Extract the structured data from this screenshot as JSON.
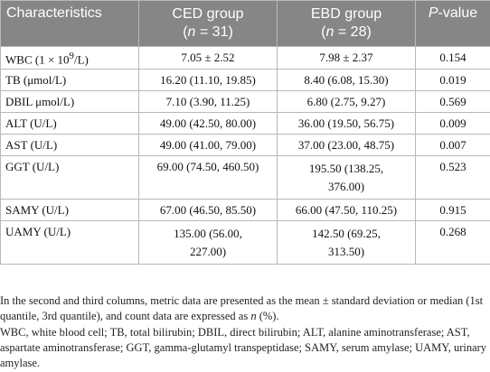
{
  "table": {
    "headers": {
      "characteristics": "Characteristics",
      "ced": {
        "line1": "CED group",
        "open": "(",
        "n": "n",
        "eq": " = 31)"
      },
      "ebd": {
        "line1": "EBD group",
        "open": "(",
        "n": "n",
        "eq": " = 28)"
      },
      "pvalue": {
        "p": "P",
        "rest": "-value"
      }
    },
    "rows": [
      {
        "label_a": "WBC (1 × 10",
        "label_sup": "9",
        "label_b": "/L)",
        "ced": "7.05 ± 2.52",
        "ebd": "7.98 ± 2.37",
        "p": "0.154"
      },
      {
        "label": "TB (μmol/L)",
        "ced": "16.20 (11.10, 19.85)",
        "ebd": "8.40 (6.08, 15.30)",
        "p": "0.019"
      },
      {
        "label": "DBIL μmol/L)",
        "ced": "7.10 (3.90, 11.25)",
        "ebd": "6.80 (2.75, 9.27)",
        "p": "0.569"
      },
      {
        "label": "ALT (U/L)",
        "ced": "49.00 (42.50, 80.00)",
        "ebd": "36.00 (19.50, 56.75)",
        "p": "0.009"
      },
      {
        "label": "AST (U/L)",
        "ced": "49.00 (41.00, 79.00)",
        "ebd": "37.00 (23.00, 48.75)",
        "p": "0.007"
      },
      {
        "label": "GGT (U/L)",
        "ced": "69.00 (74.50, 460.50)",
        "ebd_line1": "195.50 (138.25,",
        "ebd_line2": "376.00)",
        "p": "0.523"
      },
      {
        "label": "SAMY (U/L)",
        "ced": "67.00 (46.50, 85.50)",
        "ebd": "66.00 (47.50, 110.25)",
        "p": "0.915"
      },
      {
        "label": "UAMY (U/L)",
        "ced_line1": "135.00 (56.00,",
        "ced_line2": "227.00)",
        "ebd_line1": "142.50 (69.25,",
        "ebd_line2": "313.50)",
        "p": "0.268"
      }
    ]
  },
  "footnote": {
    "p1_a": "In the second and third columns, metric data are presented as the mean ± standard deviation or median (1st quantile, 3rd quantile), and count data are expressed as ",
    "p1_n": "n",
    "p1_b": " (%).",
    "p2": "WBC, white blood cell; TB, total bilirubin; DBIL, direct bilirubin; ALT, alanine aminotransferase; AST, aspartate aminotransferase; GGT, gamma-glutamyl transpeptidase; SAMY, serum amylase; UAMY, urinary amylase."
  }
}
